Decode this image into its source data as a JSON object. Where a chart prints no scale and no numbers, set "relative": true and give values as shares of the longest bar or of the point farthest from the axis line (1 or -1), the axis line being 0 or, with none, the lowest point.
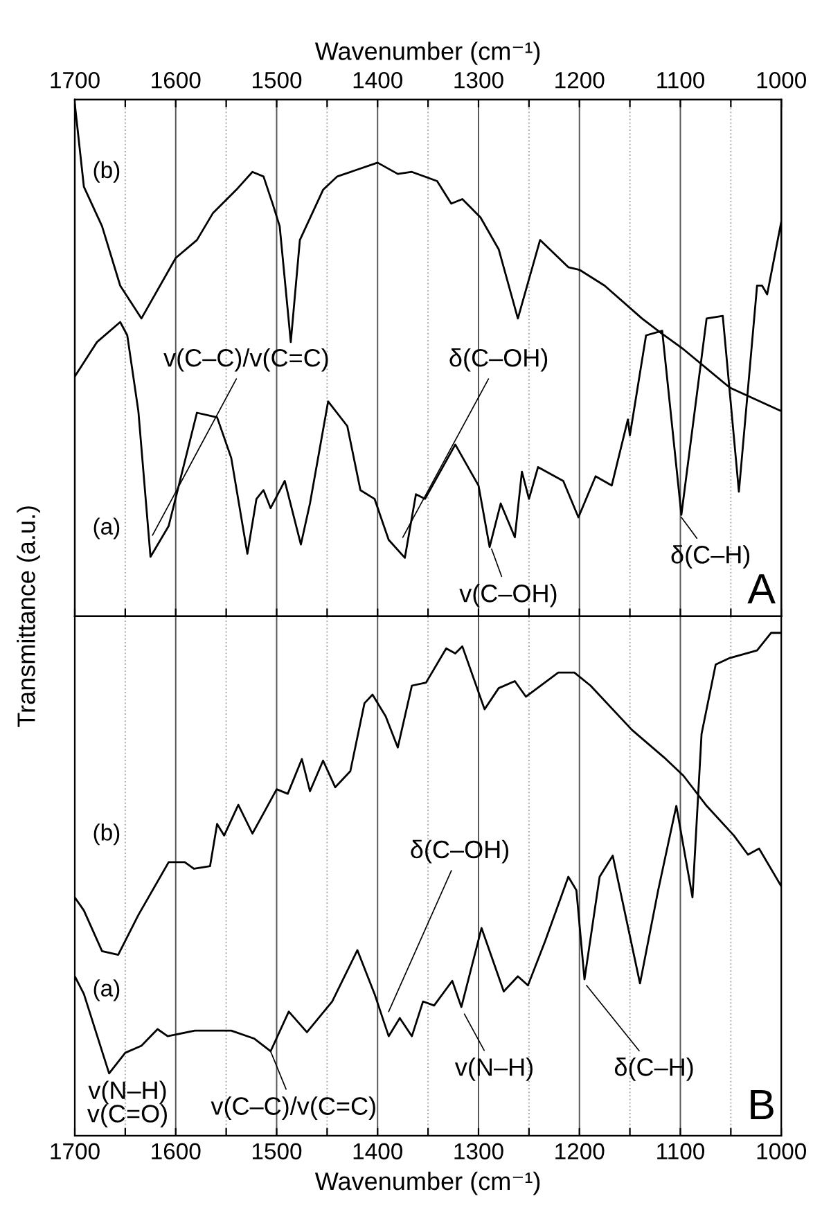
{
  "chart_data": [
    {
      "type": "line",
      "relative": true,
      "x2label": "Wavenumber (cm⁻¹)",
      "ylabel": "Transmittance (a.u.)",
      "tick_labels": false,
      "grid": "x",
      "marker": "none",
      "line_style": "solid",
      "xlim": [
        1700,
        1000
      ],
      "x2lim": [
        1700,
        1000
      ],
      "xticks": [
        {
          "value": 1700,
          "label": null
        },
        {
          "value": 1650,
          "label": null
        },
        {
          "value": 1600,
          "label": null
        },
        {
          "value": 1550,
          "label": null
        },
        {
          "value": 1500,
          "label": null
        },
        {
          "value": 1450,
          "label": null
        },
        {
          "value": 1400,
          "label": null
        },
        {
          "value": 1350,
          "label": null
        },
        {
          "value": 1300,
          "label": null
        },
        {
          "value": 1250,
          "label": null
        },
        {
          "value": 1200,
          "label": null
        },
        {
          "value": 1150,
          "label": null
        },
        {
          "value": 1100,
          "label": null
        },
        {
          "value": 1050,
          "label": null
        },
        {
          "value": 1000,
          "label": null
        }
      ],
      "x2ticks": [
        1700,
        {
          "value": 1650,
          "label": null
        },
        1600,
        {
          "value": 1550,
          "label": null
        },
        1500,
        {
          "value": 1450,
          "label": null
        },
        1400,
        {
          "value": 1350,
          "label": null
        },
        1300,
        {
          "value": 1250,
          "label": null
        },
        1200,
        {
          "value": 1150,
          "label": null
        },
        1100,
        {
          "value": 1050,
          "label": null
        },
        1000
      ],
      "series": [
        {
          "name": "(b)",
          "color": "#000000",
          "x": [
            1700,
            1691,
            1673,
            1655,
            1634,
            1600,
            1579,
            1563,
            1540,
            1524,
            1513,
            1504,
            1497,
            1486,
            1477,
            1454,
            1440,
            1400,
            1380,
            1366,
            1341,
            1327,
            1316,
            1298,
            1280,
            1261,
            1239,
            1211,
            1200,
            1175,
            1138,
            1120,
            1097,
            1051,
            1000
          ],
          "values": [
            1.0,
            0.838,
            0.761,
            0.645,
            0.581,
            0.699,
            0.734,
            0.787,
            0.832,
            0.867,
            0.858,
            0.805,
            0.761,
            0.535,
            0.734,
            0.832,
            0.858,
            0.885,
            0.863,
            0.867,
            0.849,
            0.805,
            0.814,
            0.778,
            0.716,
            0.581,
            0.734,
            0.681,
            0.676,
            0.645,
            0.581,
            0.554,
            0.521,
            0.446,
            0.4
          ]
        },
        {
          "name": "(a)",
          "color": "#000000",
          "x": [
            1700,
            1678,
            1655,
            1648,
            1637,
            1625,
            1607,
            1579,
            1559,
            1545,
            1529,
            1520,
            1513,
            1506,
            1492,
            1476,
            1467,
            1449,
            1430,
            1417,
            1403,
            1389,
            1373,
            1362,
            1353,
            1323,
            1300,
            1289,
            1278,
            1264,
            1257,
            1250,
            1241,
            1216,
            1201,
            1184,
            1168,
            1152,
            1150,
            1134,
            1118,
            1099,
            1074,
            1058,
            1042,
            1024,
            1019,
            1014,
            1000
          ],
          "values": [
            0.468,
            0.535,
            0.574,
            0.548,
            0.4,
            0.116,
            0.176,
            0.397,
            0.388,
            0.309,
            0.122,
            0.229,
            0.246,
            0.211,
            0.264,
            0.14,
            0.22,
            0.419,
            0.371,
            0.246,
            0.229,
            0.149,
            0.114,
            0.238,
            0.229,
            0.335,
            0.255,
            0.135,
            0.22,
            0.154,
            0.282,
            0.229,
            0.291,
            0.264,
            0.193,
            0.273,
            0.255,
            0.384,
            0.353,
            0.548,
            0.557,
            0.198,
            0.581,
            0.586,
            0.243,
            0.645,
            0.645,
            0.628,
            0.77
          ]
        }
      ],
      "annotations": [
        {
          "text": "v(C–C)/v(C=C)",
          "x": 1623,
          "y": 0.158
        },
        {
          "text": "δ(C–OH)",
          "x": 1375,
          "y": 0.154
        },
        {
          "text": "v(C–OH)",
          "x": 1287,
          "y": 0.131
        },
        {
          "text": "δ(C–H)",
          "x": 1099,
          "y": 0.193
        },
        "A"
      ]
    },
    {
      "type": "line",
      "relative": true,
      "xlabel": "Wavenumber (cm⁻¹)",
      "tick_labels": "x",
      "grid": "x",
      "marker": "none",
      "line_style": "solid",
      "xlim": [
        1700,
        1000
      ],
      "xticks": [
        1700,
        {
          "value": 1650,
          "label": null
        },
        1600,
        {
          "value": 1550,
          "label": null
        },
        1500,
        {
          "value": 1450,
          "label": null
        },
        1400,
        {
          "value": 1350,
          "label": null
        },
        1300,
        {
          "value": 1250,
          "label": null
        },
        1200,
        {
          "value": 1150,
          "label": null
        },
        1100,
        {
          "value": 1050,
          "label": null
        },
        1000
      ],
      "series": [
        {
          "name": "(b)",
          "color": "#000000",
          "x": [
            1700,
            1691,
            1673,
            1657,
            1637,
            1607,
            1591,
            1582,
            1566,
            1559,
            1552,
            1538,
            1524,
            1513,
            1500,
            1489,
            1475,
            1467,
            1454,
            1442,
            1427,
            1413,
            1405,
            1392,
            1380,
            1366,
            1352,
            1332,
            1323,
            1316,
            1294,
            1280,
            1264,
            1253,
            1221,
            1205,
            1189,
            1148,
            1116,
            1097,
            1074,
            1047,
            1033,
            1022,
            1000
          ],
          "values": [
            0.474,
            0.448,
            0.367,
            0.36,
            0.439,
            0.544,
            0.544,
            0.531,
            0.536,
            0.62,
            0.597,
            0.658,
            0.601,
            0.641,
            0.689,
            0.68,
            0.749,
            0.685,
            0.746,
            0.693,
            0.725,
            0.86,
            0.877,
            0.834,
            0.772,
            0.895,
            0.901,
            0.969,
            0.959,
            0.973,
            0.848,
            0.89,
            0.904,
            0.873,
            0.921,
            0.921,
            0.895,
            0.807,
            0.752,
            0.716,
            0.656,
            0.597,
            0.559,
            0.571,
            0.496
          ]
        },
        {
          "name": "(a)",
          "color": "#000000",
          "x": [
            1700,
            1691,
            1666,
            1650,
            1634,
            1618,
            1608,
            1581,
            1545,
            1522,
            1506,
            1488,
            1470,
            1445,
            1420,
            1403,
            1389,
            1378,
            1366,
            1355,
            1344,
            1326,
            1317,
            1297,
            1275,
            1261,
            1251,
            1234,
            1211,
            1203,
            1195,
            1180,
            1167,
            1140,
            1122,
            1104,
            1088,
            1079,
            1065,
            1051,
            1024,
            1010,
            1000
          ],
          "values": [
            0.317,
            0.282,
            0.124,
            0.165,
            0.179,
            0.212,
            0.198,
            0.209,
            0.209,
            0.193,
            0.168,
            0.247,
            0.206,
            0.267,
            0.369,
            0.282,
            0.198,
            0.234,
            0.198,
            0.267,
            0.259,
            0.308,
            0.256,
            0.413,
            0.287,
            0.317,
            0.299,
            0.387,
            0.515,
            0.488,
            0.311,
            0.515,
            0.557,
            0.303,
            0.488,
            0.656,
            0.474,
            0.799,
            0.937,
            0.95,
            0.965,
            1.0,
            1.0
          ]
        }
      ],
      "annotations": [
        {
          "text": "δ(C–OH)",
          "x": 1389,
          "y": 0.247
        },
        "v(N–H)\nv(C=O)",
        {
          "text": "v(C–C)/v(C=C)",
          "x": 1506,
          "y": 0.168
        },
        {
          "text": "v(N–H)",
          "x": 1314,
          "y": 0.242
        },
        {
          "text": "δ(C–H)",
          "x": 1193,
          "y": 0.299
        },
        "B"
      ]
    }
  ]
}
